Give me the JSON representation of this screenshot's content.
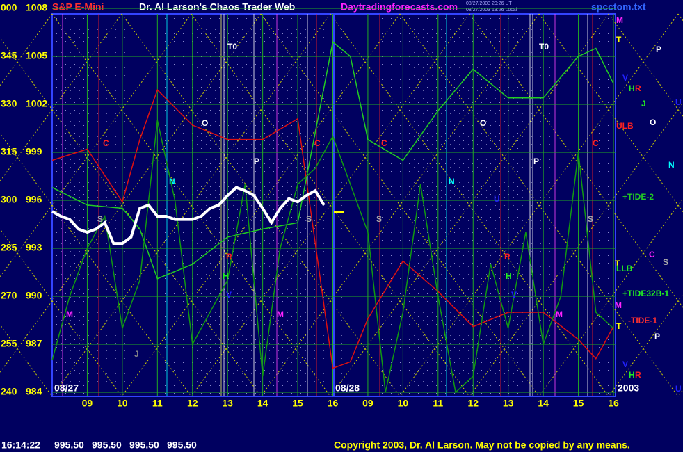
{
  "chart_data": {
    "type": "line",
    "title": "Dr. Al Larson's Chaos Trader Web",
    "symbol": "S&P E-Mini",
    "site": "Daytradingforecasts.com",
    "file": "spcctom.txt",
    "stamps": [
      "08/27/2003 20:26 UT",
      "08/27/2003 13:26 Local"
    ],
    "quote_time": "16:14:22",
    "quote": [
      "995.50",
      "995.50",
      "995.50",
      "995.50"
    ],
    "copyright": "Copyright 2003, Dr. Al Larson. May not be copied by any means.",
    "dates": [
      "08/27",
      "08/28",
      "2003"
    ],
    "ylim": [
      984,
      1008
    ],
    "yticks": [
      984,
      987,
      990,
      993,
      996,
      999,
      1002,
      1005,
      1008
    ],
    "y2lim": [
      240,
      360
    ],
    "y2ticks": [
      240,
      255,
      270,
      285,
      300,
      315,
      330,
      345,
      {
        "value": 360,
        "label": "000"
      }
    ],
    "xlim": [
      0,
      16
    ],
    "xticks": [
      {
        "value": 1,
        "label": "09"
      },
      {
        "value": 2,
        "label": "10"
      },
      {
        "value": 3,
        "label": "11"
      },
      {
        "value": 4,
        "label": "12"
      },
      {
        "value": 5,
        "label": "13"
      },
      {
        "value": 6,
        "label": "14"
      },
      {
        "value": 7,
        "label": "15"
      },
      {
        "value": 8,
        "label": "16"
      },
      {
        "value": 9,
        "label": "09"
      },
      {
        "value": 10,
        "label": "10"
      },
      {
        "value": 11,
        "label": "11"
      },
      {
        "value": 12,
        "label": "12"
      },
      {
        "value": 13,
        "label": "13"
      },
      {
        "value": 14,
        "label": "14"
      },
      {
        "value": 15,
        "label": "15"
      },
      {
        "value": 16,
        "label": "16"
      }
    ],
    "grid": true,
    "series": [
      {
        "color": "#ffffff",
        "x": [
          0,
          0.25,
          0.5,
          0.75,
          1,
          1.25,
          1.5,
          1.75,
          2,
          2.25,
          2.5,
          2.75,
          3,
          3.25,
          3.5,
          3.75,
          4,
          4.25,
          4.5,
          4.75,
          5,
          5.25,
          5.5,
          5.75,
          6,
          6.25,
          6.5,
          6.75,
          7,
          7.25,
          7.5,
          7.75
        ],
        "values": [
          995.3,
          995.0,
          994.8,
          994.2,
          994.0,
          994.2,
          994.6,
          993.3,
          993.3,
          993.7,
          995.5,
          995.7,
          995.0,
          995.0,
          994.8,
          994.8,
          994.8,
          995.0,
          995.5,
          995.7,
          996.3,
          996.8,
          996.6,
          996.3,
          995.5,
          994.6,
          995.5,
          996.1,
          995.9,
          996.3,
          996.6,
          995.7
        ]
      },
      {
        "name": "+TIDE-2",
        "color": "#22cc22",
        "x": [
          0,
          1,
          2,
          2.5,
          3,
          4,
          5,
          6,
          7,
          8,
          8.5,
          9,
          10,
          11,
          12,
          13,
          14,
          15,
          15.5,
          16
        ],
        "values": [
          996.8,
          995.7,
          995.5,
          994.2,
          991.1,
          992.0,
          993.7,
          994.2,
          994.6,
          1005.9,
          1005.0,
          999.8,
          998.5,
          1001.6,
          1004.2,
          1002.4,
          1002.4,
          1005.0,
          1005.5,
          1003.3
        ]
      },
      {
        "name": "+TIDE32B-1",
        "color": "#119911",
        "x": [
          0,
          0.5,
          1,
          1.5,
          2,
          2.5,
          3,
          3.5,
          4,
          4.5,
          5,
          5.5,
          6,
          6.5,
          7,
          7.5,
          8,
          8.5,
          9,
          9.5,
          10,
          10.5,
          11,
          11.5,
          12,
          12.5,
          13,
          13.5,
          14,
          14.5,
          15,
          15.5,
          16
        ],
        "values": [
          986,
          990,
          993,
          995,
          988,
          991,
          1001,
          996,
          987,
          989,
          991,
          997,
          985,
          993,
          997,
          998,
          1000,
          997,
          994,
          984,
          989,
          997,
          990,
          984,
          985,
          992,
          988,
          994,
          987,
          990,
          999,
          989,
          988
        ]
      },
      {
        "name": "-TIDE-1",
        "color": "#dd1111",
        "x": [
          0,
          1,
          2,
          2.5,
          3,
          4,
          5,
          6,
          7,
          8,
          8.5,
          9,
          10,
          11,
          12,
          13,
          14,
          15,
          15.5,
          16
        ],
        "values": [
          998.5,
          999.2,
          995.9,
          999.8,
          1002.9,
          1000.7,
          999.8,
          999.8,
          1001.1,
          985.5,
          985.9,
          988.6,
          992.2,
          990.3,
          988.1,
          989.0,
          989.0,
          987.3,
          986.1,
          988.1
        ]
      }
    ],
    "markers": [
      {
        "text": "T0",
        "color": "#ffffff"
      },
      {
        "text": "O",
        "color": "#ffffff"
      },
      {
        "text": "C",
        "color": "#ff2020"
      },
      {
        "text": "C",
        "color": "#ff2020"
      },
      {
        "text": "P",
        "color": "#ffffff"
      },
      {
        "text": "N",
        "color": "#00ffff"
      },
      {
        "text": "S",
        "color": "#aaaaaa"
      },
      {
        "text": "S",
        "color": "#aaaaaa"
      },
      {
        "text": "R",
        "color": "#ff2020"
      },
      {
        "text": "H",
        "color": "#22ee22"
      },
      {
        "text": "V",
        "color": "#2222ff"
      },
      {
        "text": "M",
        "color": "#ff22ff"
      },
      {
        "text": "M",
        "color": "#ff22ff"
      },
      {
        "text": "J",
        "color": "#888888"
      },
      {
        "text": "T0",
        "color": "#ffffff"
      },
      {
        "text": "O",
        "color": "#ffffff"
      },
      {
        "text": "C",
        "color": "#ff2020"
      },
      {
        "text": "C",
        "color": "#ff2020"
      },
      {
        "text": "P",
        "color": "#ffffff"
      },
      {
        "text": "N",
        "color": "#00ffff"
      },
      {
        "text": "S",
        "color": "#aaaaaa"
      },
      {
        "text": "S",
        "color": "#aaaaaa"
      },
      {
        "text": "R",
        "color": "#ff2020"
      },
      {
        "text": "H",
        "color": "#22ee22"
      },
      {
        "text": "V",
        "color": "#2222ff"
      },
      {
        "text": "M",
        "color": "#ff22ff"
      },
      {
        "text": "U",
        "color": "#2222ff"
      },
      {
        "text": "M",
        "color": "#ff22ff"
      },
      {
        "text": "T",
        "color": "#ffff00"
      },
      {
        "text": "P",
        "color": "#ffffff"
      },
      {
        "text": "V",
        "color": "#2222ff"
      },
      {
        "text": "H",
        "color": "#22ee22"
      },
      {
        "text": "R",
        "color": "#ff2020"
      },
      {
        "text": "U",
        "color": "#2222ff"
      },
      {
        "text": "J",
        "color": "#22ee22"
      },
      {
        "text": "ULB",
        "color": "#ff2020"
      },
      {
        "text": "O",
        "color": "#ffffff"
      },
      {
        "text": "N",
        "color": "#00ffff"
      },
      {
        "text": "C",
        "color": "#ff22ff"
      },
      {
        "text": "S",
        "color": "#aaaaaa"
      },
      {
        "text": "T",
        "color": "#ffff00"
      },
      {
        "text": "LLB",
        "color": "#22ee22"
      },
      {
        "text": "M",
        "color": "#ff22ff"
      },
      {
        "text": "T",
        "color": "#ffff00"
      },
      {
        "text": "P",
        "color": "#ffffff"
      },
      {
        "text": "V",
        "color": "#2222ff"
      },
      {
        "text": "H",
        "color": "#22ee22"
      },
      {
        "text": "R",
        "color": "#ff2020"
      },
      {
        "text": "U",
        "color": "#2222ff"
      }
    ]
  }
}
